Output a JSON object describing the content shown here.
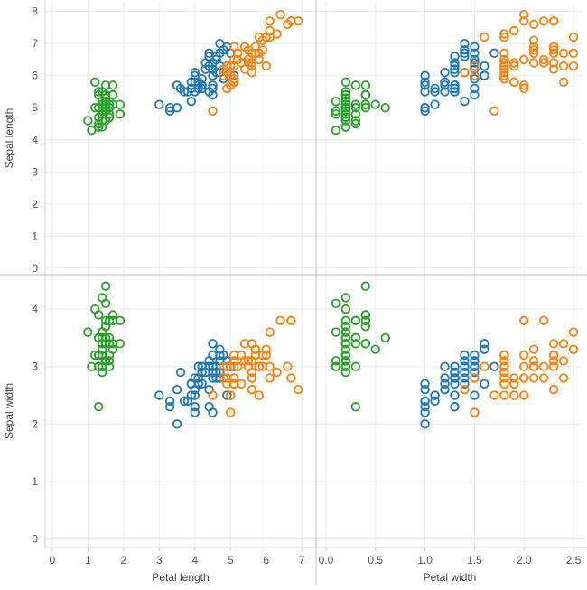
{
  "chart_data": {
    "type": "scatter",
    "layout": "scatter-matrix",
    "x_fields": [
      {
        "label": "Petal length",
        "ticks": [
          "0",
          "1",
          "2",
          "3",
          "4",
          "5",
          "6",
          "7"
        ],
        "range": [
          -0.2,
          7.4
        ]
      },
      {
        "label": "Petal width",
        "ticks": [
          "0.0",
          "0.5",
          "1.0",
          "1.5",
          "2.0",
          "2.5"
        ],
        "range": [
          -0.1,
          2.6
        ]
      }
    ],
    "y_fields": [
      {
        "label": "Sepal length",
        "ticks": [
          "0",
          "1",
          "2",
          "3",
          "4",
          "5",
          "6",
          "7",
          "8"
        ],
        "range": [
          -0.2,
          8.3
        ]
      },
      {
        "label": "Sepal width",
        "ticks": [
          "0",
          "1",
          "2",
          "3",
          "4"
        ],
        "range": [
          -0.15,
          4.6
        ]
      }
    ],
    "grid": true,
    "marker": "open-circle",
    "colors": [
      "#2ca02c",
      "#1f77b4",
      "#ff7f0e"
    ],
    "series": [
      {
        "color": "#2ca02c",
        "columns": [
          "sepal_length",
          "sepal_width",
          "petal_length",
          "petal_width"
        ],
        "points": [
          [
            5.1,
            3.5,
            1.4,
            0.2
          ],
          [
            4.9,
            3.0,
            1.4,
            0.2
          ],
          [
            4.7,
            3.2,
            1.3,
            0.2
          ],
          [
            4.6,
            3.1,
            1.5,
            0.2
          ],
          [
            5.0,
            3.6,
            1.4,
            0.2
          ],
          [
            5.4,
            3.9,
            1.7,
            0.4
          ],
          [
            4.6,
            3.4,
            1.4,
            0.3
          ],
          [
            5.0,
            3.4,
            1.5,
            0.2
          ],
          [
            4.4,
            2.9,
            1.4,
            0.2
          ],
          [
            4.9,
            3.1,
            1.5,
            0.1
          ],
          [
            5.4,
            3.7,
            1.5,
            0.2
          ],
          [
            4.8,
            3.4,
            1.6,
            0.2
          ],
          [
            4.8,
            3.0,
            1.4,
            0.1
          ],
          [
            4.3,
            3.0,
            1.1,
            0.1
          ],
          [
            5.8,
            4.0,
            1.2,
            0.2
          ],
          [
            5.7,
            4.4,
            1.5,
            0.4
          ],
          [
            5.4,
            3.9,
            1.3,
            0.4
          ],
          [
            5.1,
            3.5,
            1.4,
            0.3
          ],
          [
            5.7,
            3.8,
            1.7,
            0.3
          ],
          [
            5.1,
            3.8,
            1.5,
            0.3
          ],
          [
            5.4,
            3.4,
            1.7,
            0.2
          ],
          [
            5.1,
            3.7,
            1.5,
            0.4
          ],
          [
            4.6,
            3.6,
            1.0,
            0.2
          ],
          [
            5.1,
            3.3,
            1.7,
            0.5
          ],
          [
            4.8,
            3.4,
            1.9,
            0.2
          ],
          [
            5.0,
            3.0,
            1.6,
            0.2
          ],
          [
            5.0,
            3.4,
            1.6,
            0.4
          ],
          [
            5.2,
            3.5,
            1.5,
            0.2
          ],
          [
            5.2,
            3.4,
            1.4,
            0.2
          ],
          [
            4.7,
            3.2,
            1.6,
            0.2
          ],
          [
            4.8,
            3.1,
            1.6,
            0.2
          ],
          [
            5.4,
            3.4,
            1.5,
            0.4
          ],
          [
            5.2,
            4.1,
            1.5,
            0.1
          ],
          [
            5.5,
            4.2,
            1.4,
            0.2
          ],
          [
            4.9,
            3.1,
            1.5,
            0.2
          ],
          [
            5.0,
            3.2,
            1.2,
            0.2
          ],
          [
            5.5,
            3.5,
            1.3,
            0.2
          ],
          [
            4.9,
            3.6,
            1.4,
            0.1
          ],
          [
            4.4,
            3.0,
            1.3,
            0.2
          ],
          [
            5.1,
            3.4,
            1.5,
            0.2
          ],
          [
            5.0,
            3.5,
            1.3,
            0.3
          ],
          [
            4.5,
            2.3,
            1.3,
            0.3
          ],
          [
            4.4,
            3.2,
            1.3,
            0.2
          ],
          [
            5.0,
            3.5,
            1.6,
            0.6
          ],
          [
            5.1,
            3.8,
            1.9,
            0.4
          ],
          [
            4.8,
            3.0,
            1.4,
            0.3
          ],
          [
            5.1,
            3.8,
            1.6,
            0.2
          ],
          [
            4.6,
            3.2,
            1.4,
            0.2
          ],
          [
            5.3,
            3.7,
            1.5,
            0.2
          ],
          [
            5.0,
            3.3,
            1.4,
            0.2
          ]
        ]
      },
      {
        "color": "#1f77b4",
        "columns": [
          "sepal_length",
          "sepal_width",
          "petal_length",
          "petal_width"
        ],
        "points": [
          [
            7.0,
            3.2,
            4.7,
            1.4
          ],
          [
            6.4,
            3.2,
            4.5,
            1.5
          ],
          [
            6.9,
            3.1,
            4.9,
            1.5
          ],
          [
            5.5,
            2.3,
            4.0,
            1.3
          ],
          [
            6.5,
            2.8,
            4.6,
            1.5
          ],
          [
            5.7,
            2.8,
            4.5,
            1.3
          ],
          [
            6.3,
            3.3,
            4.7,
            1.6
          ],
          [
            4.9,
            2.4,
            3.3,
            1.0
          ],
          [
            6.6,
            2.9,
            4.6,
            1.3
          ],
          [
            5.2,
            2.7,
            3.9,
            1.4
          ],
          [
            5.0,
            2.0,
            3.5,
            1.0
          ],
          [
            5.9,
            3.0,
            4.2,
            1.5
          ],
          [
            6.0,
            2.2,
            4.0,
            1.0
          ],
          [
            6.1,
            2.9,
            4.7,
            1.4
          ],
          [
            5.6,
            2.9,
            3.6,
            1.3
          ],
          [
            6.7,
            3.1,
            4.4,
            1.4
          ],
          [
            5.6,
            3.0,
            4.5,
            1.5
          ],
          [
            5.8,
            2.7,
            4.1,
            1.0
          ],
          [
            6.2,
            2.2,
            4.5,
            1.5
          ],
          [
            5.6,
            2.5,
            3.9,
            1.1
          ],
          [
            5.9,
            3.2,
            4.8,
            1.8
          ],
          [
            6.1,
            2.8,
            4.0,
            1.3
          ],
          [
            6.3,
            2.5,
            4.9,
            1.5
          ],
          [
            6.1,
            2.8,
            4.7,
            1.2
          ],
          [
            6.4,
            2.9,
            4.3,
            1.3
          ],
          [
            6.6,
            3.0,
            4.4,
            1.4
          ],
          [
            6.8,
            2.8,
            4.8,
            1.4
          ],
          [
            6.7,
            3.0,
            5.0,
            1.7
          ],
          [
            6.0,
            2.9,
            4.5,
            1.5
          ],
          [
            5.7,
            2.6,
            3.5,
            1.0
          ],
          [
            5.5,
            2.4,
            3.8,
            1.1
          ],
          [
            5.5,
            2.4,
            3.7,
            1.0
          ],
          [
            5.8,
            2.7,
            3.9,
            1.2
          ],
          [
            6.0,
            2.7,
            5.1,
            1.6
          ],
          [
            5.4,
            3.0,
            4.5,
            1.5
          ],
          [
            6.0,
            3.4,
            4.5,
            1.6
          ],
          [
            6.7,
            3.1,
            4.7,
            1.5
          ],
          [
            6.3,
            2.3,
            4.4,
            1.3
          ],
          [
            5.6,
            3.0,
            4.1,
            1.3
          ],
          [
            5.5,
            2.5,
            4.0,
            1.3
          ],
          [
            5.5,
            2.6,
            4.4,
            1.2
          ],
          [
            6.1,
            3.0,
            4.6,
            1.4
          ],
          [
            5.8,
            2.6,
            4.0,
            1.2
          ],
          [
            5.0,
            2.3,
            3.3,
            1.0
          ],
          [
            5.6,
            2.7,
            4.2,
            1.3
          ],
          [
            5.7,
            3.0,
            4.2,
            1.2
          ],
          [
            5.7,
            2.9,
            4.2,
            1.3
          ],
          [
            6.2,
            2.9,
            4.3,
            1.3
          ],
          [
            5.1,
            2.5,
            3.0,
            1.1
          ],
          [
            5.7,
            2.8,
            4.1,
            1.3
          ]
        ]
      },
      {
        "color": "#ff7f0e",
        "columns": [
          "sepal_length",
          "sepal_width",
          "petal_length",
          "petal_width"
        ],
        "points": [
          [
            6.3,
            3.3,
            6.0,
            2.5
          ],
          [
            5.8,
            2.7,
            5.1,
            1.9
          ],
          [
            7.1,
            3.0,
            5.9,
            2.1
          ],
          [
            6.3,
            2.9,
            5.6,
            1.8
          ],
          [
            6.5,
            3.0,
            5.8,
            2.2
          ],
          [
            7.6,
            3.0,
            6.6,
            2.1
          ],
          [
            4.9,
            2.5,
            4.5,
            1.7
          ],
          [
            7.3,
            2.9,
            6.3,
            1.8
          ],
          [
            6.7,
            2.5,
            5.8,
            1.8
          ],
          [
            7.2,
            3.6,
            6.1,
            2.5
          ],
          [
            6.5,
            3.2,
            5.1,
            2.0
          ],
          [
            6.4,
            2.7,
            5.3,
            1.9
          ],
          [
            6.8,
            3.0,
            5.5,
            2.1
          ],
          [
            5.7,
            2.5,
            5.0,
            2.0
          ],
          [
            5.8,
            2.8,
            5.1,
            2.4
          ],
          [
            6.4,
            3.2,
            5.3,
            2.3
          ],
          [
            6.5,
            3.0,
            5.5,
            1.8
          ],
          [
            7.7,
            3.8,
            6.7,
            2.2
          ],
          [
            7.7,
            2.6,
            6.9,
            2.3
          ],
          [
            6.0,
            2.2,
            5.0,
            1.5
          ],
          [
            6.9,
            3.2,
            5.7,
            2.3
          ],
          [
            5.6,
            2.8,
            4.9,
            2.0
          ],
          [
            7.7,
            2.8,
            6.7,
            2.0
          ],
          [
            6.3,
            2.7,
            4.9,
            1.8
          ],
          [
            6.7,
            3.3,
            5.7,
            2.1
          ],
          [
            7.2,
            3.2,
            6.0,
            1.8
          ],
          [
            6.2,
            2.8,
            4.8,
            1.8
          ],
          [
            6.1,
            3.0,
            4.9,
            1.8
          ],
          [
            6.4,
            2.8,
            5.6,
            2.1
          ],
          [
            7.2,
            3.0,
            5.8,
            1.6
          ],
          [
            7.4,
            2.8,
            6.1,
            1.9
          ],
          [
            7.9,
            3.8,
            6.4,
            2.0
          ],
          [
            6.4,
            2.8,
            5.6,
            2.2
          ],
          [
            6.3,
            2.8,
            5.1,
            1.5
          ],
          [
            6.1,
            2.6,
            5.6,
            1.4
          ],
          [
            7.7,
            3.0,
            6.1,
            2.3
          ],
          [
            6.3,
            3.4,
            5.6,
            2.4
          ],
          [
            6.4,
            3.1,
            5.5,
            1.8
          ],
          [
            6.0,
            3.0,
            4.8,
            1.8
          ],
          [
            6.9,
            3.1,
            5.4,
            2.1
          ],
          [
            6.7,
            3.1,
            5.6,
            2.4
          ],
          [
            6.9,
            3.1,
            5.1,
            2.3
          ],
          [
            5.8,
            2.7,
            5.1,
            1.9
          ],
          [
            6.8,
            3.2,
            5.9,
            2.3
          ],
          [
            6.7,
            3.3,
            5.7,
            2.5
          ],
          [
            6.7,
            3.0,
            5.2,
            2.3
          ],
          [
            6.3,
            2.5,
            5.0,
            1.9
          ],
          [
            6.5,
            3.0,
            5.2,
            2.0
          ],
          [
            6.2,
            3.4,
            5.4,
            2.3
          ],
          [
            5.9,
            3.0,
            5.1,
            1.8
          ]
        ]
      }
    ]
  }
}
